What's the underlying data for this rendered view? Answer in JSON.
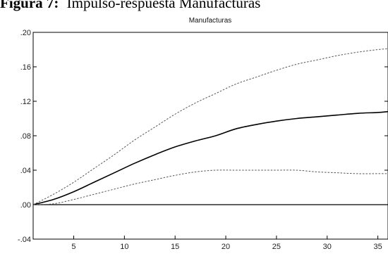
{
  "figure": {
    "caption_label": "Figura 7:",
    "caption_text": "Impulso-respuesta Manufacturas"
  },
  "chart_data": {
    "type": "line",
    "subtitle": "Manufacturas",
    "title": "",
    "xlabel": "",
    "ylabel": "",
    "xlim": [
      1,
      36
    ],
    "ylim": [
      -0.04,
      0.2
    ],
    "x_ticks": [
      5,
      10,
      15,
      20,
      25,
      30,
      35
    ],
    "y_ticks": [
      {
        "value": -0.04,
        "label": "-.04"
      },
      {
        "value": 0.0,
        "label": ".00"
      },
      {
        "value": 0.04,
        "label": ".04"
      },
      {
        "value": 0.08,
        "label": ".08"
      },
      {
        "value": 0.12,
        "label": ".12"
      },
      {
        "value": 0.16,
        "label": ".16"
      },
      {
        "value": 0.2,
        "label": ".20"
      }
    ],
    "zero_line": true,
    "grid": false,
    "x": [
      1,
      3,
      5,
      7,
      9,
      11,
      13,
      15,
      17,
      19,
      21,
      23,
      25,
      27,
      29,
      31,
      33,
      35,
      36
    ],
    "series": [
      {
        "style": "solid",
        "color": "#000000",
        "values": [
          0.0,
          0.006,
          0.015,
          0.026,
          0.037,
          0.048,
          0.058,
          0.067,
          0.074,
          0.08,
          0.088,
          0.093,
          0.097,
          0.1,
          0.102,
          0.104,
          0.106,
          0.107,
          0.108
        ]
      },
      {
        "style": "dashed",
        "color": "#555555",
        "values": [
          0.0,
          0.012,
          0.026,
          0.042,
          0.058,
          0.075,
          0.09,
          0.105,
          0.118,
          0.129,
          0.14,
          0.148,
          0.156,
          0.163,
          0.168,
          0.173,
          0.177,
          0.18,
          0.181
        ]
      },
      {
        "style": "dashed",
        "color": "#555555",
        "values": [
          0.0,
          0.001,
          0.006,
          0.012,
          0.018,
          0.024,
          0.029,
          0.034,
          0.038,
          0.04,
          0.04,
          0.04,
          0.04,
          0.04,
          0.038,
          0.037,
          0.036,
          0.036,
          0.036
        ]
      }
    ]
  }
}
